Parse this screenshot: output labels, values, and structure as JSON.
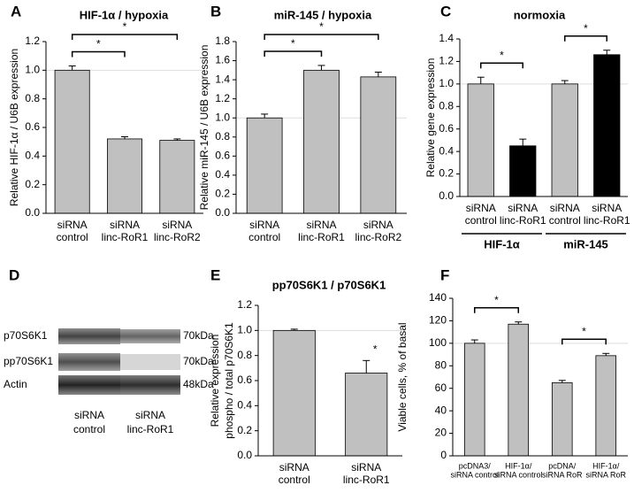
{
  "chart_data": [
    {
      "type": "bar",
      "panel": "A",
      "title": "HIF-1α / hypoxia",
      "ylabel": [
        "Relative HIF-1α / U6B expression"
      ],
      "categories": [
        [
          "siRNA",
          "control"
        ],
        [
          "siRNA",
          "linc-RoR1"
        ],
        [
          "siRNA",
          "linc-RoR2"
        ]
      ],
      "values": [
        1.0,
        0.52,
        0.51
      ],
      "errors": [
        0.03,
        0.015,
        0.01
      ],
      "colors": [
        "#c0c0c0",
        "#c0c0c0",
        "#c0c0c0"
      ],
      "ylim": [
        0,
        1.2
      ],
      "yticks": [
        {
          "value": 0,
          "label": "0.0"
        },
        0.2,
        0.4,
        0.6,
        0.8,
        {
          "value": 1,
          "label": "1.0"
        },
        1.2
      ],
      "reference_line": 1,
      "significance": [
        {
          "from": 0,
          "to": 1,
          "label": "*"
        },
        {
          "from": 0,
          "to": 2,
          "label": "*"
        }
      ]
    },
    {
      "type": "bar",
      "panel": "B",
      "title": "miR-145 / hypoxia",
      "ylabel": [
        "Relative miR-145 / U6B expression"
      ],
      "categories": [
        [
          "siRNA",
          "control"
        ],
        [
          "siRNA",
          "linc-RoR1"
        ],
        [
          "siRNA",
          "linc-RoR2"
        ]
      ],
      "values": [
        1.0,
        1.5,
        1.43
      ],
      "errors": [
        0.04,
        0.05,
        0.05
      ],
      "colors": [
        "#c0c0c0",
        "#c0c0c0",
        "#c0c0c0"
      ],
      "ylim": [
        0,
        1.8
      ],
      "yticks": [
        {
          "value": 0,
          "label": "0.0"
        },
        0.2,
        0.4,
        0.6,
        0.8,
        {
          "value": 1,
          "label": "1.0"
        },
        1.2,
        1.4,
        1.6,
        1.8
      ],
      "reference_line": 1,
      "significance": [
        {
          "from": 0,
          "to": 1,
          "label": "*"
        },
        {
          "from": 0,
          "to": 2,
          "label": "*"
        }
      ]
    },
    {
      "type": "bar",
      "panel": "C",
      "title": "normoxia",
      "ylabel": [
        "Relative gene expression"
      ],
      "categories": [
        [
          "siRNA",
          "control"
        ],
        [
          "siRNA",
          "linc-RoR1"
        ],
        [
          "siRNA",
          "control"
        ],
        [
          "siRNA",
          "linc-RoR1"
        ]
      ],
      "values": [
        1.0,
        0.45,
        1.0,
        1.26
      ],
      "errors": [
        0.06,
        0.06,
        0.03,
        0.04
      ],
      "colors": [
        "#c0c0c0",
        "#000000",
        "#c0c0c0",
        "#000000"
      ],
      "ylim": [
        0,
        1.4
      ],
      "yticks": [
        {
          "value": 0,
          "label": "0.0"
        },
        0.2,
        0.4,
        0.6,
        0.8,
        {
          "value": 1,
          "label": "1.0"
        },
        1.2,
        1.4
      ],
      "reference_line": 1,
      "groups": [
        {
          "label": "HIF-1α",
          "from": 0,
          "to": 1
        },
        {
          "label": "miR-145",
          "from": 2,
          "to": 3
        }
      ],
      "significance": [
        {
          "from": 0,
          "to": 1,
          "label": "*"
        },
        {
          "from": 2,
          "to": 3,
          "label": "*"
        }
      ]
    },
    {
      "type": "bar",
      "panel": "E",
      "title": "pp70S6K1 / p70S6K1",
      "ylabel": [
        "Relative expression",
        "phospho / total p70S6K1"
      ],
      "categories": [
        [
          "siRNA",
          "control"
        ],
        [
          "siRNA",
          "linc-RoR1"
        ]
      ],
      "values": [
        1.0,
        0.66
      ],
      "errors": [
        0.01,
        0.1
      ],
      "colors": [
        "#c0c0c0",
        "#c0c0c0"
      ],
      "ylim": [
        0,
        1.2
      ],
      "yticks": [
        {
          "value": 0,
          "label": "0.0"
        },
        0.2,
        0.4,
        0.6,
        0.8,
        {
          "value": 1,
          "label": "1.0"
        },
        1.2
      ],
      "reference_line": 1,
      "significance": [
        {
          "from": 1,
          "to": 1,
          "label": "*"
        }
      ]
    },
    {
      "type": "bar",
      "panel": "F",
      "ylabel": [
        "Viable cells, % of basal"
      ],
      "categories": [
        [
          "pcDNA3/",
          "siRNA control"
        ],
        [
          "HIF-1α/",
          "siRNA control"
        ],
        [
          "pcDNA/",
          "siRNA RoR"
        ],
        [
          "HIF-1α/",
          "siRNA RoR"
        ]
      ],
      "values": [
        100,
        117,
        65,
        89
      ],
      "errors": [
        3,
        2,
        2,
        2
      ],
      "colors": [
        "#c0c0c0",
        "#c0c0c0",
        "#c0c0c0",
        "#c0c0c0"
      ],
      "ylim": [
        0,
        140
      ],
      "yticks": [
        0,
        20,
        40,
        60,
        80,
        100,
        120,
        140
      ],
      "reference_line": 100,
      "significance": [
        {
          "from": 0,
          "to": 1,
          "label": "*"
        },
        {
          "from": 2,
          "to": 3,
          "label": "*"
        }
      ]
    }
  ],
  "western_blot": {
    "panel": "D",
    "rows": [
      {
        "protein": "p70S6K1",
        "size": "70kDa"
      },
      {
        "protein": "pp70S6K1",
        "size": "70kDa"
      },
      {
        "protein": "Actin",
        "size": "48kDa"
      }
    ],
    "lanes": [
      [
        "siRNA",
        "control"
      ],
      [
        "siRNA",
        "linc-RoR1"
      ]
    ]
  }
}
